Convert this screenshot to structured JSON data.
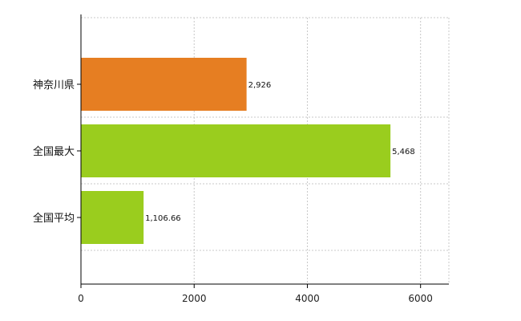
{
  "chart_data": {
    "type": "bar",
    "orientation": "horizontal",
    "categories": [
      "神奈川県",
      "全国最大",
      "全国平均"
    ],
    "values": [
      2926,
      5468,
      1106.66
    ],
    "value_labels": [
      "2,926",
      "5,468",
      "1,106.66"
    ],
    "colors": [
      "#E67E22",
      "#9ACD1E",
      "#9ACD1E"
    ],
    "xlim": [
      0,
      6500
    ],
    "x_ticks": [
      0,
      2000,
      4000,
      6000
    ],
    "x_tick_labels": [
      "0",
      "2000",
      "4000",
      "6000"
    ],
    "grid": true,
    "legend": "none"
  }
}
